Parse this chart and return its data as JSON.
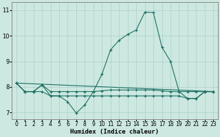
{
  "xlabel": "Humidex (Indice chaleur)",
  "bg_color": "#cce8e0",
  "grid_color": "#aacfc8",
  "line_color": "#1a6e62",
  "xlim": [
    -0.5,
    23.5
  ],
  "ylim": [
    6.75,
    11.3
  ],
  "yticks": [
    7,
    8,
    9,
    10,
    11
  ],
  "xticks": [
    0,
    1,
    2,
    3,
    4,
    5,
    6,
    7,
    8,
    9,
    10,
    11,
    12,
    13,
    14,
    15,
    16,
    17,
    18,
    19,
    20,
    21,
    22,
    23
  ],
  "line1_x": [
    0,
    1,
    2,
    3,
    4,
    5,
    6,
    7,
    8,
    9,
    10,
    11,
    12,
    13,
    14,
    15,
    16,
    17,
    18,
    19,
    20,
    21,
    22,
    23
  ],
  "line1_y": [
    8.15,
    7.82,
    7.82,
    8.08,
    7.65,
    7.65,
    7.42,
    6.98,
    7.3,
    7.82,
    8.5,
    9.45,
    9.82,
    10.05,
    10.22,
    10.92,
    10.9,
    9.55,
    9.0,
    7.82,
    7.55,
    7.55,
    7.82,
    7.82
  ],
  "line2_x": [
    0,
    23
  ],
  "line2_y": [
    8.15,
    7.82
  ],
  "line3_x": [
    0,
    1,
    2,
    3,
    4,
    5,
    6,
    7,
    8,
    9,
    10,
    11,
    12,
    13,
    14,
    15,
    16,
    17,
    18,
    19,
    20,
    21,
    22,
    23
  ],
  "line3_y": [
    8.15,
    7.82,
    7.82,
    8.08,
    7.82,
    7.82,
    7.82,
    7.82,
    7.82,
    7.82,
    7.85,
    7.88,
    7.88,
    7.88,
    7.88,
    7.88,
    7.88,
    7.85,
    7.82,
    7.82,
    7.82,
    7.82,
    7.82,
    7.82
  ],
  "line4_x": [
    0,
    1,
    2,
    3,
    4,
    5,
    6,
    7,
    8,
    9,
    10,
    11,
    12,
    13,
    14,
    15,
    16,
    17,
    18,
    19,
    20,
    21,
    22,
    23
  ],
  "line4_y": [
    8.15,
    7.82,
    7.82,
    7.82,
    7.65,
    7.65,
    7.65,
    7.65,
    7.65,
    7.65,
    7.65,
    7.65,
    7.65,
    7.65,
    7.65,
    7.65,
    7.65,
    7.65,
    7.65,
    7.65,
    7.55,
    7.55,
    7.82,
    7.82
  ]
}
